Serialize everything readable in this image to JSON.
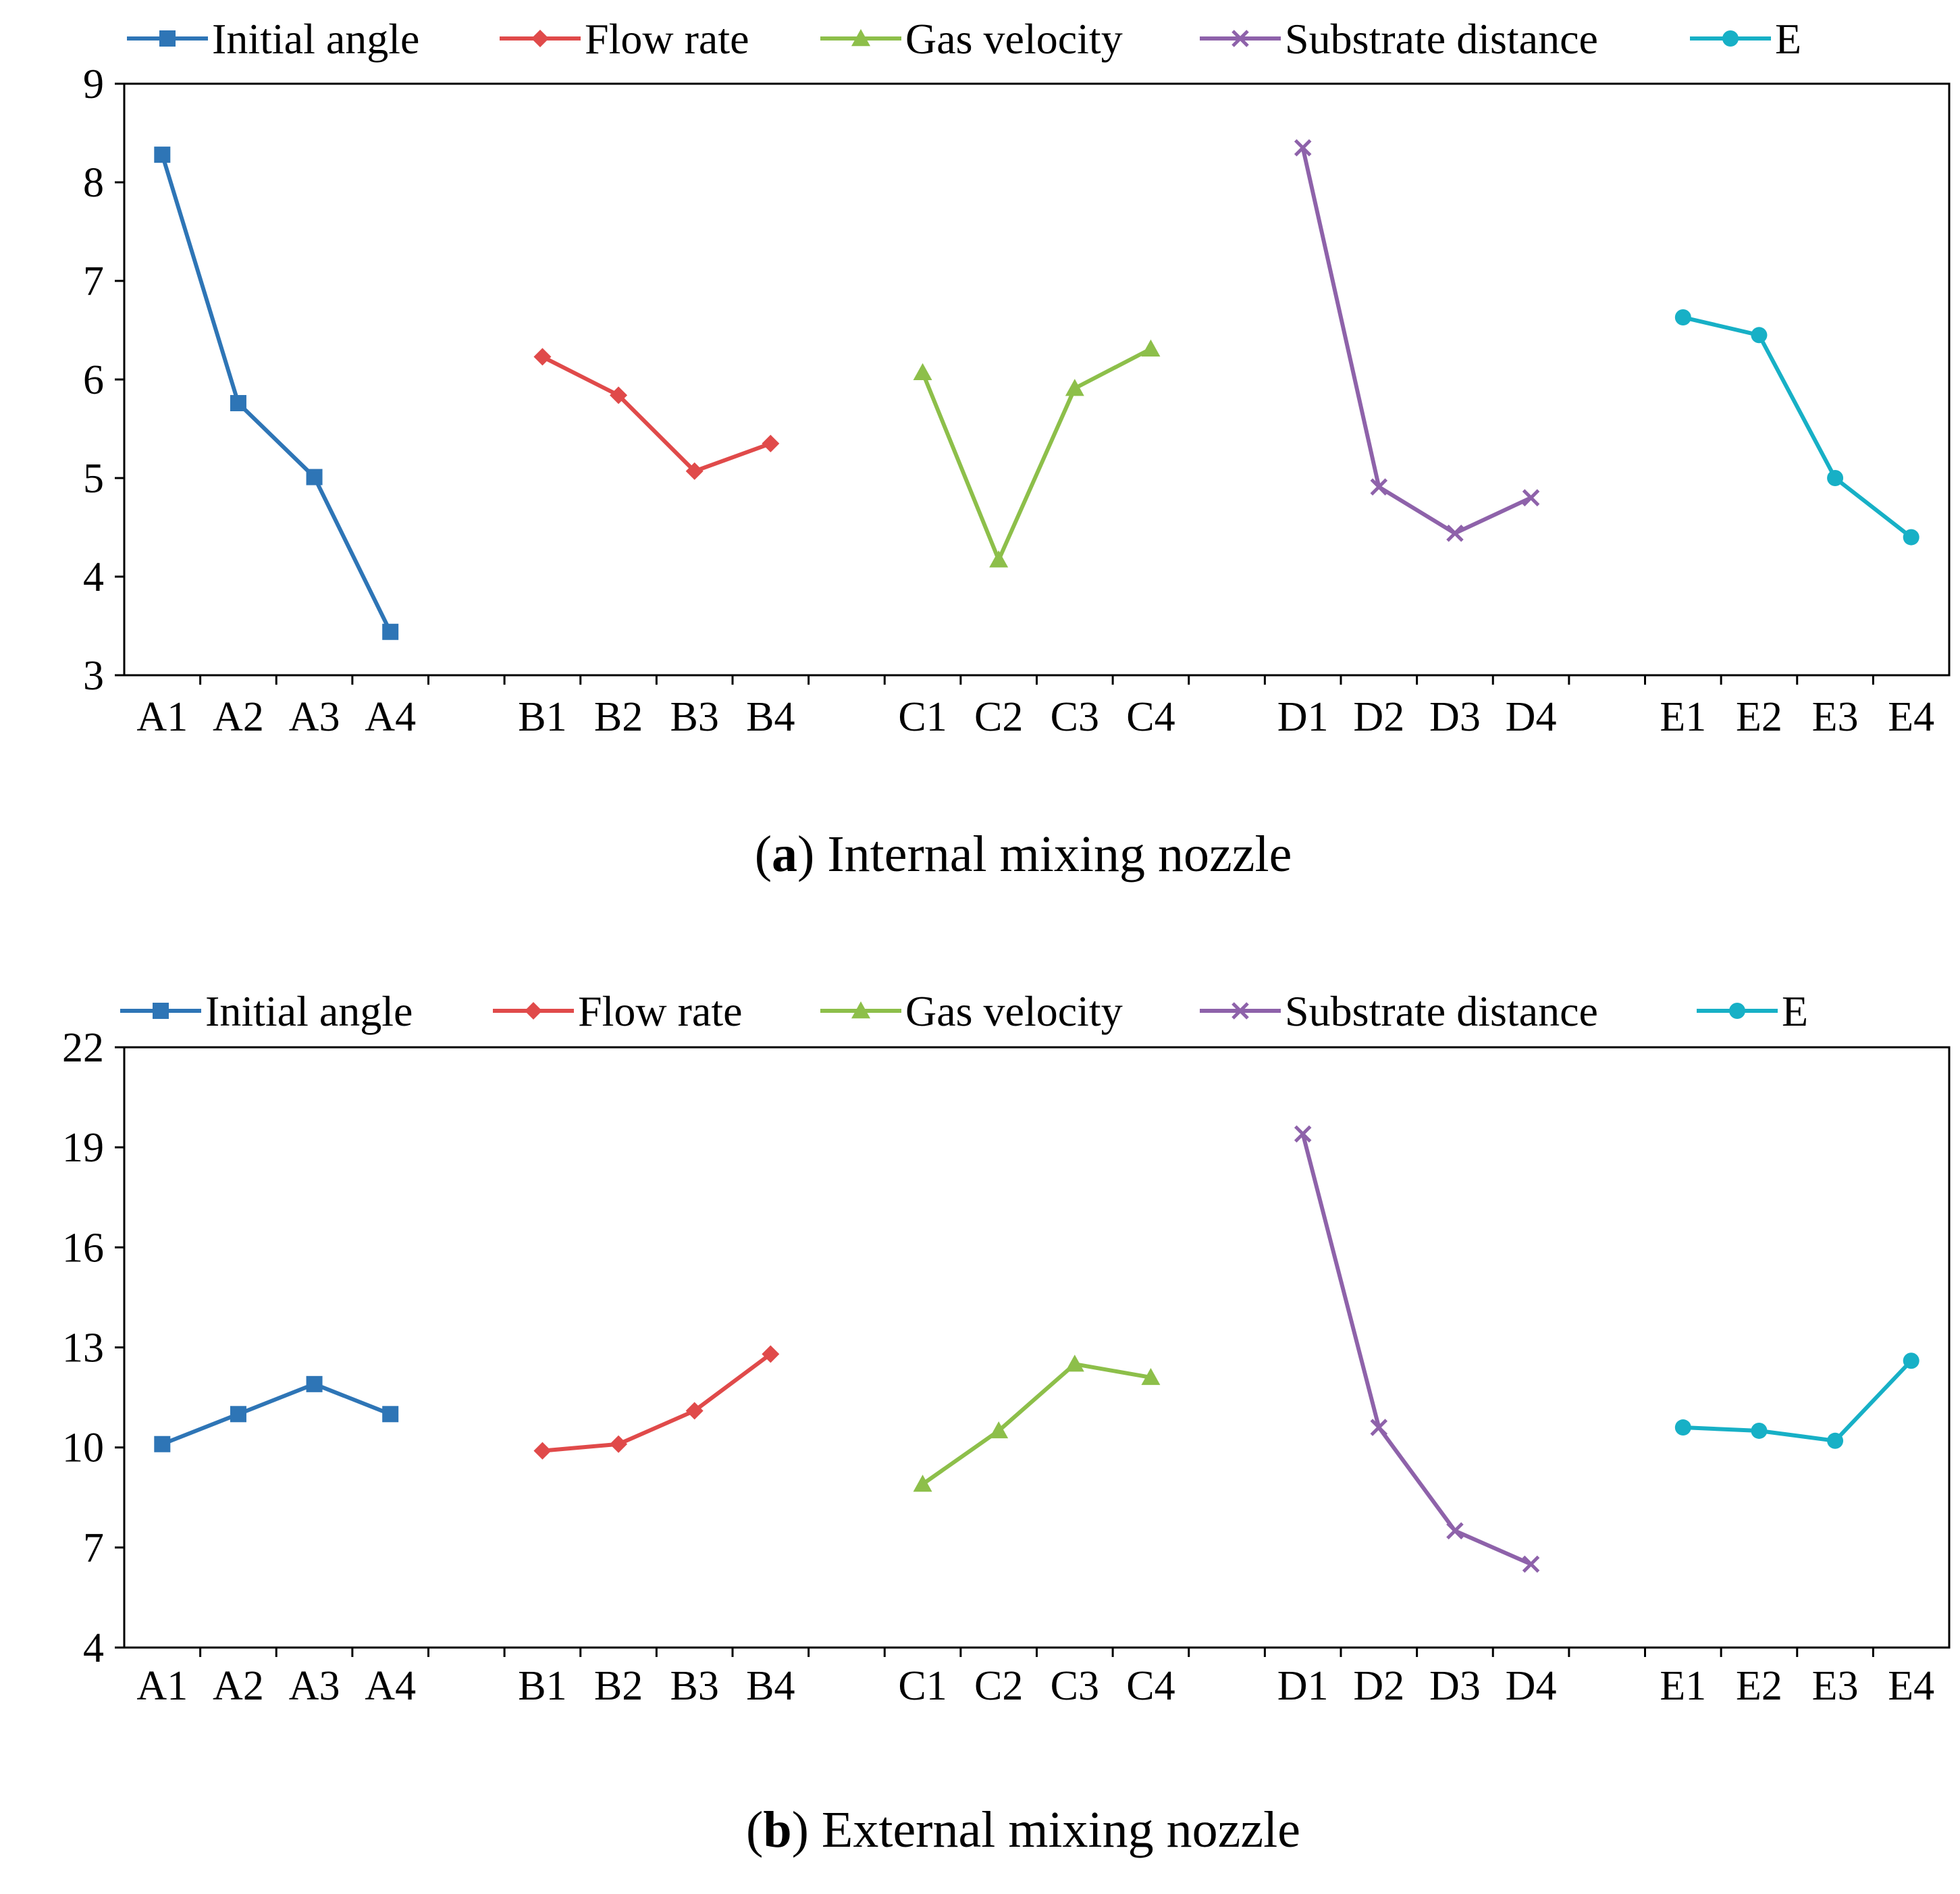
{
  "colors": {
    "initial_angle": "#2E75B6",
    "flow_rate": "#E04A4A",
    "gas_velocity": "#8DBF4A",
    "substrate_distance": "#8E62AA",
    "e": "#17B0C6",
    "axis": "#000000"
  },
  "chart_data": [
    {
      "type": "line",
      "panel": "a",
      "caption_letter": "a",
      "caption_text": "Internal mixing nozzle",
      "ylim": [
        3,
        9
      ],
      "yticks": [
        3,
        4,
        5,
        6,
        7,
        8,
        9
      ],
      "legend_position": "top",
      "grid": false,
      "series": [
        {
          "name": "Initial angle",
          "marker": "square",
          "color_key": "initial_angle",
          "categories": [
            "A1",
            "A2",
            "A3",
            "A4"
          ],
          "values": [
            8.28,
            5.76,
            5.01,
            3.44
          ]
        },
        {
          "name": "Flow rate",
          "marker": "diamond",
          "color_key": "flow_rate",
          "categories": [
            "B1",
            "B2",
            "B3",
            "B4"
          ],
          "values": [
            6.23,
            5.84,
            5.07,
            5.35
          ]
        },
        {
          "name": "Gas velocity",
          "marker": "triangle",
          "color_key": "gas_velocity",
          "categories": [
            "C1",
            "C2",
            "C3",
            "C4"
          ],
          "values": [
            6.07,
            4.17,
            5.91,
            6.31
          ]
        },
        {
          "name": "Substrate distance",
          "marker": "x",
          "color_key": "substrate_distance",
          "categories": [
            "D1",
            "D2",
            "D3",
            "D4"
          ],
          "values": [
            8.35,
            4.91,
            4.44,
            4.8
          ]
        },
        {
          "name": "E",
          "marker": "circle",
          "color_key": "e",
          "categories": [
            "E1",
            "E2",
            "E3",
            "E4"
          ],
          "values": [
            6.63,
            6.45,
            5.0,
            4.4
          ]
        }
      ]
    },
    {
      "type": "line",
      "panel": "b",
      "caption_letter": "b",
      "caption_text": "External mixing nozzle",
      "ylim": [
        4,
        22
      ],
      "yticks": [
        4,
        7,
        10,
        13,
        16,
        19,
        22
      ],
      "legend_position": "top",
      "grid": false,
      "series": [
        {
          "name": "Initial angle",
          "marker": "square",
          "color_key": "initial_angle",
          "categories": [
            "A1",
            "A2",
            "A3",
            "A4"
          ],
          "values": [
            10.1,
            11.0,
            11.9,
            11.0
          ]
        },
        {
          "name": "Flow rate",
          "marker": "diamond",
          "color_key": "flow_rate",
          "categories": [
            "B1",
            "B2",
            "B3",
            "B4"
          ],
          "values": [
            9.9,
            10.1,
            11.1,
            12.8
          ]
        },
        {
          "name": "Gas velocity",
          "marker": "triangle",
          "color_key": "gas_velocity",
          "categories": [
            "C1",
            "C2",
            "C3",
            "C4"
          ],
          "values": [
            8.9,
            10.5,
            12.5,
            12.1
          ]
        },
        {
          "name": "Substrate distance",
          "marker": "x",
          "color_key": "substrate_distance",
          "categories": [
            "D1",
            "D2",
            "D3",
            "D4"
          ],
          "values": [
            19.4,
            10.6,
            7.5,
            6.5
          ]
        },
        {
          "name": "E",
          "marker": "circle",
          "color_key": "e",
          "categories": [
            "E1",
            "E2",
            "E3",
            "E4"
          ],
          "values": [
            10.6,
            10.5,
            10.2,
            12.6
          ]
        }
      ]
    }
  ]
}
